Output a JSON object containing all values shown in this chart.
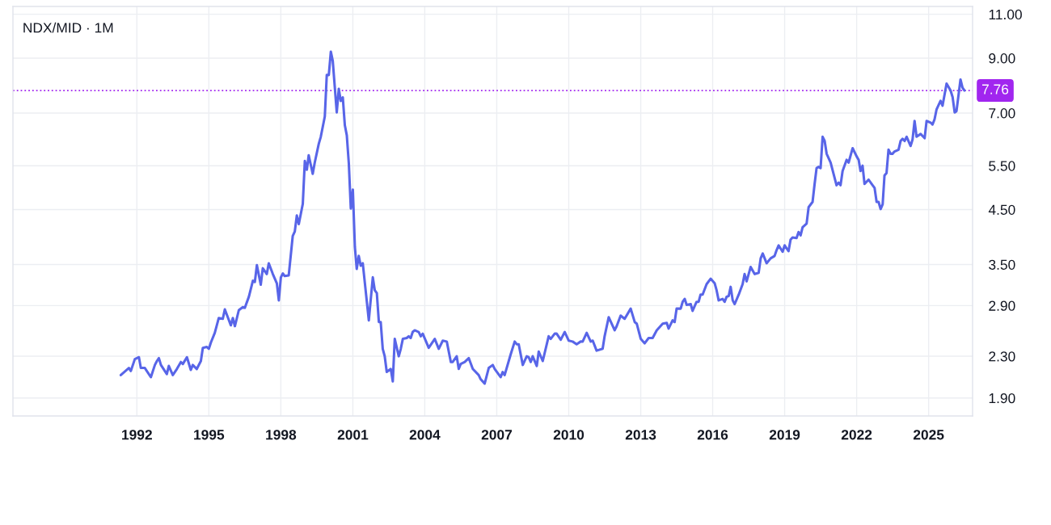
{
  "chart_data": {
    "type": "line",
    "title": "NDX/MID · 1M",
    "x": [
      "1991-05",
      "1991-09",
      "1991-10",
      "1991-12",
      "1992-02",
      "1992-03",
      "1992-05",
      "1992-08",
      "1992-10",
      "1992-11",
      "1992-12",
      "1993-01",
      "1993-04",
      "1993-05",
      "1993-07",
      "1993-09",
      "1993-11",
      "1993-12",
      "1994-02",
      "1994-04",
      "1994-05",
      "1994-07",
      "1994-09",
      "1994-10",
      "1994-12",
      "1995-01",
      "1995-02",
      "1995-04",
      "1995-06",
      "1995-08",
      "1995-09",
      "1995-12",
      "1996-01",
      "1996-02",
      "1996-04",
      "1996-06",
      "1996-07",
      "1996-09",
      "1996-11",
      "1996-12",
      "1997-01",
      "1997-03",
      "1997-04",
      "1997-06",
      "1997-07",
      "1997-09",
      "1997-11",
      "1997-12",
      "1998-01",
      "1998-02",
      "1998-03",
      "1998-05",
      "1998-07",
      "1998-08",
      "1998-09",
      "1998-10",
      "1998-12",
      "1999-01",
      "1999-02",
      "1999-03",
      "1999-05",
      "1999-06",
      "1999-08",
      "1999-09",
      "1999-11",
      "1999-12",
      "2000-01",
      "2000-02",
      "2000-03",
      "2000-05",
      "2000-06",
      "2000-07",
      "2000-08",
      "2000-09",
      "2000-10",
      "2000-11",
      "2000-12",
      "2001-01",
      "2001-02",
      "2001-03",
      "2001-04",
      "2001-05",
      "2001-06",
      "2001-09",
      "2001-11",
      "2001-12",
      "2002-01",
      "2002-02",
      "2002-03",
      "2002-04",
      "2002-05",
      "2002-06",
      "2002-08",
      "2002-09",
      "2002-10",
      "2002-12",
      "2003-01",
      "2003-02",
      "2003-04",
      "2003-05",
      "2003-06",
      "2003-07",
      "2003-08",
      "2003-10",
      "2003-11",
      "2003-12",
      "2004-03",
      "2004-06",
      "2004-08",
      "2004-10",
      "2004-12",
      "2005-02",
      "2005-03",
      "2005-05",
      "2005-06",
      "2005-07",
      "2005-09",
      "2005-11",
      "2006-01",
      "2006-04",
      "2006-05",
      "2006-07",
      "2006-09",
      "2006-11",
      "2006-12",
      "2007-03",
      "2007-04",
      "2007-05",
      "2007-08",
      "2007-10",
      "2007-11",
      "2007-12",
      "2008-02",
      "2008-04",
      "2008-05",
      "2008-06",
      "2008-07",
      "2008-09",
      "2008-10",
      "2008-12",
      "2009-03",
      "2009-04",
      "2009-06",
      "2009-07",
      "2009-09",
      "2009-11",
      "2010-01",
      "2010-03",
      "2010-05",
      "2010-07",
      "2010-08",
      "2010-10",
      "2010-12",
      "2011-01",
      "2011-03",
      "2011-06",
      "2011-07",
      "2011-09",
      "2011-12",
      "2012-01",
      "2012-03",
      "2012-05",
      "2012-08",
      "2012-10",
      "2012-11",
      "2013-01",
      "2013-03",
      "2013-05",
      "2013-07",
      "2013-09",
      "2013-12",
      "2014-02",
      "2014-03",
      "2014-05",
      "2014-06",
      "2014-07",
      "2014-09",
      "2014-10",
      "2014-11",
      "2014-12",
      "2015-02",
      "2015-03",
      "2015-05",
      "2015-06",
      "2015-07",
      "2015-08",
      "2015-10",
      "2015-12",
      "2016-02",
      "2016-03",
      "2016-04",
      "2016-06",
      "2016-07",
      "2016-08",
      "2016-09",
      "2016-10",
      "2016-11",
      "2016-12",
      "2017-02",
      "2017-04",
      "2017-05",
      "2017-06",
      "2017-08",
      "2017-10",
      "2017-12",
      "2018-01",
      "2018-02",
      "2018-04",
      "2018-06",
      "2018-08",
      "2018-09",
      "2018-10",
      "2018-12",
      "2019-01",
      "2019-03",
      "2019-04",
      "2019-05",
      "2019-07",
      "2019-08",
      "2019-09",
      "2019-10",
      "2019-12",
      "2020-01",
      "2020-03",
      "2020-04",
      "2020-05",
      "2020-06",
      "2020-07",
      "2020-08",
      "2020-09",
      "2020-10",
      "2020-12",
      "2021-03",
      "2021-04",
      "2021-05",
      "2021-06",
      "2021-08",
      "2021-09",
      "2021-11",
      "2022-01",
      "2022-02",
      "2022-03",
      "2022-04",
      "2022-05",
      "2022-07",
      "2022-09",
      "2022-10",
      "2022-11",
      "2022-12",
      "2023-01",
      "2023-02",
      "2023-03",
      "2023-04",
      "2023-05",
      "2023-06",
      "2023-07",
      "2023-08",
      "2023-10",
      "2023-11",
      "2023-12",
      "2024-01",
      "2024-02",
      "2024-04",
      "2024-05",
      "2024-06",
      "2024-07",
      "2024-09",
      "2024-11",
      "2024-12",
      "2025-02",
      "2025-03",
      "2025-04",
      "2025-05",
      "2025-07",
      "2025-08",
      "2025-10",
      "2025-12",
      "2026-01",
      "2026-02",
      "2026-03",
      "2026-05",
      "2026-06",
      "2026-07"
    ],
    "series": [
      {
        "color": "#5865e8",
        "values": [
          2.11,
          2.18,
          2.15,
          2.27,
          2.29,
          2.18,
          2.18,
          2.09,
          2.21,
          2.25,
          2.28,
          2.21,
          2.12,
          2.2,
          2.11,
          2.17,
          2.24,
          2.22,
          2.29,
          2.16,
          2.21,
          2.17,
          2.25,
          2.39,
          2.4,
          2.38,
          2.45,
          2.56,
          2.74,
          2.73,
          2.85,
          2.65,
          2.74,
          2.64,
          2.84,
          2.88,
          2.87,
          3.02,
          3.25,
          3.23,
          3.49,
          3.19,
          3.44,
          3.35,
          3.52,
          3.35,
          3.21,
          2.97,
          3.3,
          3.36,
          3.32,
          3.33,
          3.99,
          4.07,
          4.38,
          4.21,
          4.62,
          5.62,
          5.4,
          5.77,
          5.3,
          5.58,
          6.08,
          6.28,
          6.89,
          8.33,
          8.33,
          9.27,
          8.89,
          7.02,
          7.82,
          7.4,
          7.52,
          6.62,
          6.32,
          5.55,
          4.52,
          4.93,
          3.79,
          3.43,
          3.64,
          3.48,
          3.52,
          2.71,
          3.3,
          3.11,
          3.07,
          2.69,
          2.69,
          2.38,
          2.3,
          2.14,
          2.17,
          2.05,
          2.49,
          2.3,
          2.38,
          2.49,
          2.5,
          2.52,
          2.5,
          2.57,
          2.59,
          2.57,
          2.52,
          2.55,
          2.39,
          2.49,
          2.38,
          2.47,
          2.46,
          2.24,
          2.24,
          2.3,
          2.17,
          2.22,
          2.24,
          2.28,
          2.17,
          2.11,
          2.07,
          2.03,
          2.18,
          2.21,
          2.17,
          2.09,
          2.14,
          2.11,
          2.32,
          2.46,
          2.43,
          2.43,
          2.21,
          2.3,
          2.29,
          2.24,
          2.3,
          2.2,
          2.35,
          2.25,
          2.52,
          2.49,
          2.55,
          2.55,
          2.48,
          2.57,
          2.47,
          2.46,
          2.43,
          2.46,
          2.46,
          2.56,
          2.46,
          2.47,
          2.36,
          2.38,
          2.52,
          2.75,
          2.59,
          2.64,
          2.77,
          2.73,
          2.86,
          2.69,
          2.67,
          2.49,
          2.44,
          2.5,
          2.5,
          2.59,
          2.67,
          2.68,
          2.61,
          2.71,
          2.69,
          2.86,
          2.86,
          2.95,
          2.99,
          2.91,
          2.92,
          2.83,
          2.95,
          2.95,
          3.05,
          3.05,
          3.2,
          3.28,
          3.21,
          3.11,
          2.97,
          2.99,
          2.95,
          3.02,
          3.03,
          3.16,
          2.97,
          2.92,
          3.05,
          3.2,
          3.35,
          3.24,
          3.46,
          3.35,
          3.37,
          3.6,
          3.68,
          3.52,
          3.6,
          3.64,
          3.74,
          3.82,
          3.71,
          3.82,
          3.72,
          3.92,
          3.96,
          3.95,
          4.06,
          4.0,
          4.15,
          4.22,
          4.55,
          4.66,
          5.06,
          5.44,
          5.47,
          5.44,
          6.28,
          6.16,
          5.81,
          5.58,
          5.03,
          5.09,
          5.03,
          5.37,
          5.65,
          5.58,
          5.96,
          5.74,
          5.65,
          5.37,
          5.5,
          5.06,
          5.16,
          5.03,
          4.97,
          4.66,
          4.66,
          4.51,
          4.61,
          5.26,
          5.32,
          5.92,
          5.81,
          5.81,
          5.87,
          5.92,
          6.16,
          6.22,
          6.16,
          6.28,
          6.02,
          6.2,
          6.75,
          6.28,
          6.36,
          6.24,
          6.75,
          6.7,
          6.64,
          6.8,
          7.11,
          7.4,
          7.24,
          8.01,
          7.76,
          7.53,
          7.02,
          7.06,
          8.16,
          7.86,
          7.76
        ]
      }
    ],
    "xlim": [
      "1986-11",
      "2026-11"
    ],
    "xticks": [
      "1992",
      "1995",
      "1998",
      "2001",
      "2004",
      "2007",
      "2010",
      "2013",
      "2016",
      "2019",
      "2022",
      "2025"
    ],
    "ylim": [
      1.75,
      11.4
    ],
    "yticks": [
      {
        "value": 1.9,
        "label": "1.90"
      },
      {
        "value": 2.3,
        "label": "2.30"
      },
      {
        "value": 2.9,
        "label": "2.90"
      },
      {
        "value": 3.5,
        "label": "3.50"
      },
      {
        "value": 4.5,
        "label": "4.50"
      },
      {
        "value": 5.5,
        "label": "5.50"
      },
      {
        "value": 7,
        "label": "7.00"
      },
      {
        "value": 9,
        "label": "9.00"
      },
      {
        "value": 11,
        "label": "11.00"
      }
    ],
    "log": true,
    "grid": true,
    "ref_lines": [
      {
        "axis": "y",
        "value": 7.76,
        "label": "7.76",
        "color": "#a126ef",
        "line_style": "dotted"
      }
    ]
  }
}
